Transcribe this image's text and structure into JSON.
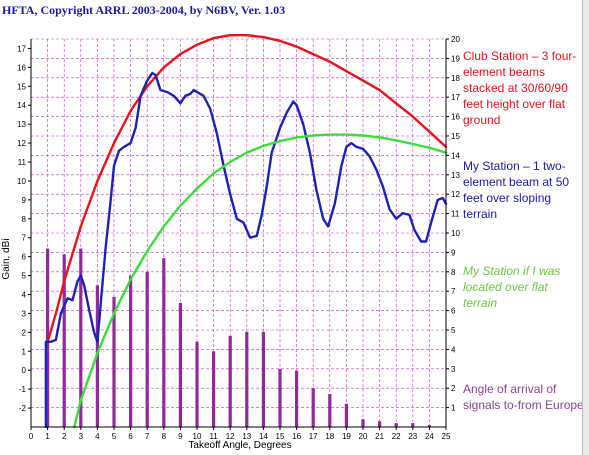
{
  "header": "HFTA, Copyright ARRL 2003-2004, by N6BV, Ver. 1.03",
  "annotations": {
    "club": "Club Station – 3 four-element beams stacked at 30/60/90 feet height over flat ground",
    "mine": "My Station – 1 two-element beam at 50 feet over sloping terrain",
    "mine_flat": "My Station if I was located over flat terrain",
    "arrival": "Angle of arrival of signals to-from Europe"
  },
  "colors": {
    "club": "#e8121b",
    "mine": "#1c22b4",
    "mine_flat": "#3bdc3b",
    "arrival": "#8e2a9a",
    "grid": "#cc33cc",
    "axis": "#000000"
  },
  "chart_data": {
    "type": "line",
    "title": "",
    "xlabel": "Takeoff Angle, Degrees",
    "ylabel": "Gain, dBi",
    "xlim": [
      0,
      25
    ],
    "ylim": [
      -3,
      17.5
    ],
    "y2lim": [
      0,
      20
    ],
    "xticks": [
      0,
      1,
      2,
      3,
      4,
      5,
      6,
      7,
      8,
      9,
      10,
      11,
      12,
      13,
      14,
      15,
      16,
      17,
      18,
      19,
      20,
      21,
      22,
      23,
      24,
      25
    ],
    "yticks": [
      -2,
      -1,
      0,
      1,
      2,
      3,
      4,
      5,
      6,
      7,
      8,
      9,
      10,
      11,
      12,
      13,
      14,
      15,
      16,
      17
    ],
    "y2ticks": [
      1,
      2,
      3,
      4,
      5,
      6,
      7,
      8,
      9,
      10,
      11,
      12,
      13,
      14,
      15,
      16,
      17,
      18,
      19,
      20
    ],
    "grid": true,
    "series": [
      {
        "name": "Club Station",
        "axis": "left",
        "values": [
          [
            1.0,
            1.5
          ],
          [
            1.5,
            3.0
          ],
          [
            2,
            4.7
          ],
          [
            3,
            7.6
          ],
          [
            4,
            10.0
          ],
          [
            5,
            12.0
          ],
          [
            6,
            13.7
          ],
          [
            7,
            15.0
          ],
          [
            8,
            16.0
          ],
          [
            9,
            16.7
          ],
          [
            10,
            17.2
          ],
          [
            11,
            17.55
          ],
          [
            12,
            17.7
          ],
          [
            13,
            17.7
          ],
          [
            14,
            17.6
          ],
          [
            15,
            17.4
          ],
          [
            16,
            17.1
          ],
          [
            17,
            16.7
          ],
          [
            18,
            16.3
          ],
          [
            19,
            15.8
          ],
          [
            20,
            15.3
          ],
          [
            21,
            14.8
          ],
          [
            22,
            14.1
          ],
          [
            23,
            13.4
          ],
          [
            24,
            12.6
          ],
          [
            25,
            11.8
          ]
        ]
      },
      {
        "name": "My Station",
        "axis": "left",
        "values": [
          [
            0.9,
            -3
          ],
          [
            0.9,
            1.5
          ],
          [
            1.2,
            1.5
          ],
          [
            1.5,
            1.6
          ],
          [
            1.8,
            3.0
          ],
          [
            2.2,
            3.8
          ],
          [
            2.5,
            3.7
          ],
          [
            2.8,
            4.7
          ],
          [
            3.0,
            5.0
          ],
          [
            3.2,
            4.5
          ],
          [
            3.5,
            3.2
          ],
          [
            3.8,
            2.0
          ],
          [
            4.0,
            1.5
          ],
          [
            4.2,
            3.5
          ],
          [
            4.5,
            6.5
          ],
          [
            4.8,
            9.0
          ],
          [
            5.0,
            10.8
          ],
          [
            5.3,
            11.6
          ],
          [
            5.6,
            11.8
          ],
          [
            6.0,
            12.0
          ],
          [
            6.3,
            12.8
          ],
          [
            6.6,
            14.5
          ],
          [
            7.0,
            15.3
          ],
          [
            7.3,
            15.7
          ],
          [
            7.5,
            15.6
          ],
          [
            7.8,
            14.8
          ],
          [
            8.2,
            14.7
          ],
          [
            8.6,
            14.5
          ],
          [
            9.0,
            14.1
          ],
          [
            9.3,
            14.5
          ],
          [
            9.6,
            14.6
          ],
          [
            9.8,
            14.8
          ],
          [
            10.0,
            14.7
          ],
          [
            10.4,
            14.5
          ],
          [
            10.8,
            13.8
          ],
          [
            11.2,
            12.5
          ],
          [
            11.6,
            10.8
          ],
          [
            12.0,
            9.3
          ],
          [
            12.4,
            8.0
          ],
          [
            12.8,
            7.8
          ],
          [
            13.2,
            7.0
          ],
          [
            13.6,
            7.1
          ],
          [
            13.9,
            8.2
          ],
          [
            14.2,
            9.7
          ],
          [
            14.5,
            11.5
          ],
          [
            15.0,
            12.8
          ],
          [
            15.4,
            13.6
          ],
          [
            15.8,
            14.2
          ],
          [
            16.0,
            14.0
          ],
          [
            16.4,
            13.0
          ],
          [
            16.8,
            11.5
          ],
          [
            17.2,
            9.5
          ],
          [
            17.6,
            8.0
          ],
          [
            17.9,
            7.6
          ],
          [
            18.3,
            8.8
          ],
          [
            18.7,
            10.8
          ],
          [
            19.0,
            11.8
          ],
          [
            19.3,
            12.0
          ],
          [
            19.6,
            11.8
          ],
          [
            20.0,
            11.7
          ],
          [
            20.4,
            11.3
          ],
          [
            20.8,
            10.6
          ],
          [
            21.2,
            9.7
          ],
          [
            21.6,
            8.5
          ],
          [
            22.0,
            8.0
          ],
          [
            22.4,
            8.3
          ],
          [
            22.8,
            8.2
          ],
          [
            23.1,
            7.4
          ],
          [
            23.5,
            6.8
          ],
          [
            23.8,
            6.8
          ],
          [
            24.1,
            7.8
          ],
          [
            24.5,
            9.0
          ],
          [
            24.8,
            9.1
          ],
          [
            25.0,
            8.8
          ]
        ]
      },
      {
        "name": "My Station if I was located over flat terrain",
        "axis": "left",
        "values": [
          [
            2.6,
            -3
          ],
          [
            3,
            -1.6
          ],
          [
            4,
            0.9
          ],
          [
            5,
            3.0
          ],
          [
            6,
            4.8
          ],
          [
            7,
            6.3
          ],
          [
            8,
            7.6
          ],
          [
            9,
            8.7
          ],
          [
            10,
            9.6
          ],
          [
            11,
            10.4
          ],
          [
            12,
            11.0
          ],
          [
            13,
            11.5
          ],
          [
            14,
            11.85
          ],
          [
            15,
            12.1
          ],
          [
            16,
            12.3
          ],
          [
            17,
            12.4
          ],
          [
            18,
            12.45
          ],
          [
            19,
            12.45
          ],
          [
            20,
            12.4
          ],
          [
            21,
            12.3
          ],
          [
            22,
            12.15
          ],
          [
            23,
            11.95
          ],
          [
            24,
            11.75
          ],
          [
            25,
            11.5
          ]
        ]
      },
      {
        "name": "Angle of arrival of signals to-from Europe",
        "type": "bar",
        "axis": "right",
        "x": [
          1,
          2,
          3,
          4,
          5,
          6,
          7,
          8,
          9,
          10,
          11,
          12,
          13,
          14,
          15,
          16,
          17,
          18,
          19,
          20,
          21,
          22,
          23,
          24
        ],
        "values": [
          9.2,
          8.9,
          9.2,
          7.3,
          6.7,
          7.8,
          8.0,
          8.7,
          6.4,
          4.4,
          3.9,
          4.7,
          4.9,
          4.9,
          3.0,
          2.9,
          2.0,
          1.7,
          1.2,
          0.4,
          0.3,
          0.2,
          0.2,
          0.1
        ]
      }
    ]
  }
}
